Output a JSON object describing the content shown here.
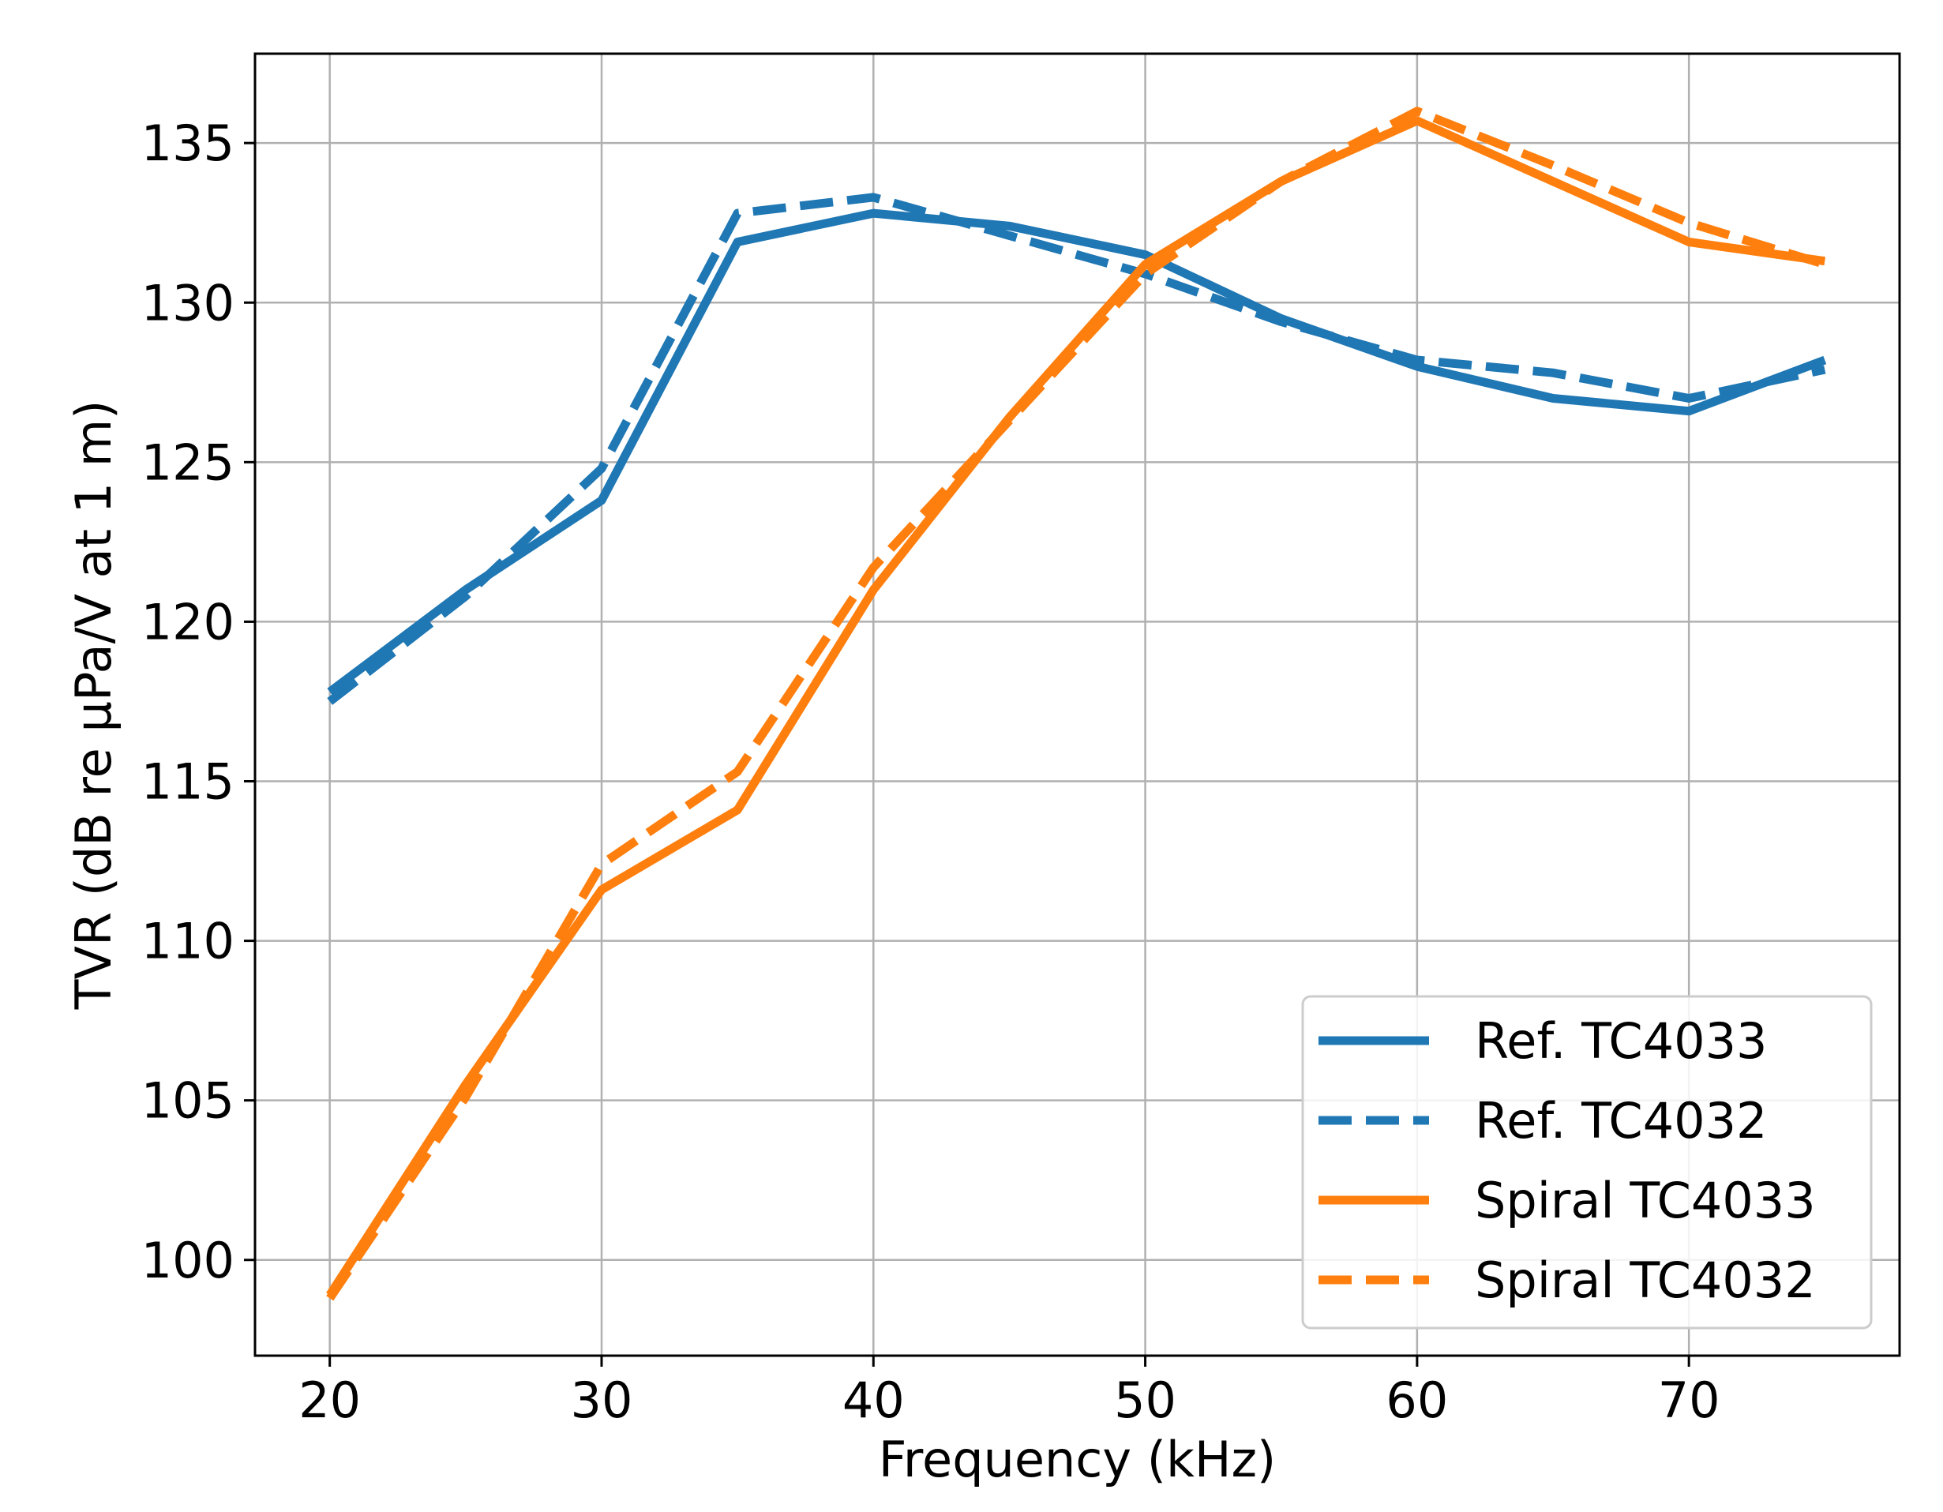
{
  "chart_data": {
    "type": "line",
    "title": "",
    "xlabel": "Frequency (kHz)",
    "ylabel": "TVR (dB re µPa/V at 1 m)",
    "xlim": [
      17.25,
      77.75
    ],
    "ylim": [
      97.0,
      137.8
    ],
    "xticks": [
      20,
      30,
      40,
      50,
      60,
      70
    ],
    "yticks": [
      100,
      105,
      110,
      115,
      120,
      125,
      130,
      135
    ],
    "grid": true,
    "legend_position": "lower-right",
    "x": [
      20,
      25,
      30,
      35,
      40,
      45,
      50,
      55,
      60,
      65,
      70,
      75
    ],
    "series": [
      {
        "name": "Ref. TC4033",
        "color": "#1f77b4",
        "style": "solid",
        "values": [
          117.8,
          121.0,
          123.8,
          131.9,
          132.8,
          132.4,
          131.5,
          129.5,
          128.0,
          127.0,
          126.6,
          128.2
        ]
      },
      {
        "name": "Ref. TC4032",
        "color": "#1f77b4",
        "style": "dashed",
        "values": [
          117.5,
          120.8,
          124.8,
          132.8,
          133.3,
          132.1,
          130.9,
          129.4,
          128.2,
          127.8,
          127.0,
          127.9
        ]
      },
      {
        "name": "Spiral TC4033",
        "color": "#ff7f0e",
        "style": "solid",
        "values": [
          98.9,
          105.5,
          111.6,
          114.1,
          121.0,
          126.4,
          131.2,
          133.8,
          135.7,
          133.8,
          131.9,
          131.3
        ]
      },
      {
        "name": "Spiral TC4032",
        "color": "#ff7f0e",
        "style": "dashed",
        "values": [
          98.8,
          105.1,
          112.4,
          115.3,
          121.7,
          126.3,
          130.9,
          133.8,
          136.0,
          134.3,
          132.5,
          131.2
        ]
      }
    ]
  }
}
